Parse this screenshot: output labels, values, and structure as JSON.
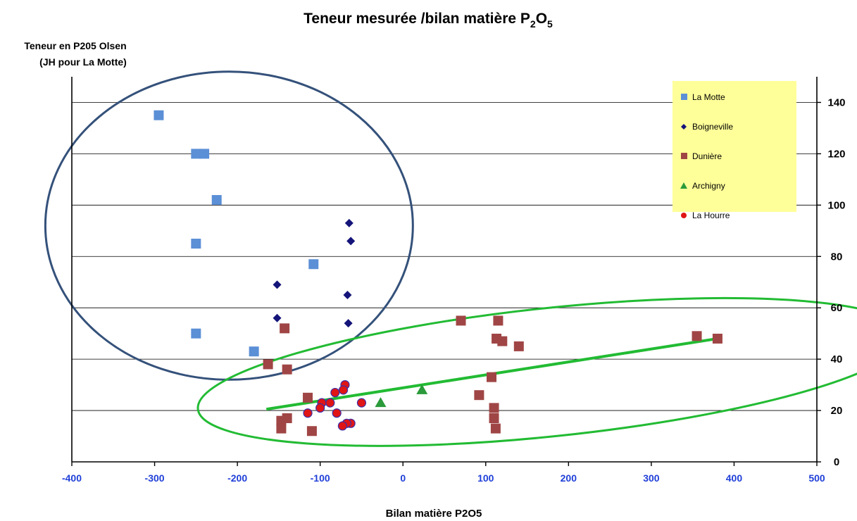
{
  "chart_data": {
    "type": "scatter",
    "title_main": "Teneur mesurée /bilan matière P",
    "title_sub1": "2",
    "title_mid": "O",
    "title_sub2": "5",
    "ylabel_line1": "Teneur en P205 Olsen",
    "ylabel_line2": "(JH pour La Motte)",
    "xlabel": "Bilan  matière P2O5",
    "xlim": [
      -400,
      500
    ],
    "ylim": [
      0,
      150
    ],
    "x_ticks": [
      -400,
      -300,
      -200,
      -100,
      0,
      100,
      200,
      300,
      400,
      500
    ],
    "y_ticks": [
      0,
      20,
      40,
      60,
      80,
      100,
      120,
      140
    ],
    "grid": "horizontal",
    "legend_position": "top-right",
    "series": [
      {
        "name": "La Motte",
        "marker": "square",
        "color": "#5b8fd6",
        "points": [
          [
            -295,
            135
          ],
          [
            -250,
            120
          ],
          [
            -240,
            120
          ],
          [
            -225,
            102
          ],
          [
            -250,
            85
          ],
          [
            -108,
            77
          ],
          [
            -250,
            50
          ],
          [
            -180,
            43
          ]
        ]
      },
      {
        "name": "Boigneville",
        "marker": "diamond",
        "color": "#14147a",
        "points": [
          [
            -65,
            93
          ],
          [
            -63,
            86
          ],
          [
            -152,
            69
          ],
          [
            -67,
            65
          ],
          [
            -152,
            56
          ],
          [
            -66,
            54
          ]
        ]
      },
      {
        "name": "Dunière",
        "marker": "square",
        "color": "#a04545",
        "points": [
          [
            -143,
            52
          ],
          [
            -163,
            38
          ],
          [
            -140,
            36
          ],
          [
            -115,
            25
          ],
          [
            -140,
            17
          ],
          [
            -147,
            16
          ],
          [
            -147,
            13
          ],
          [
            -110,
            12
          ],
          [
            70,
            55
          ],
          [
            115,
            55
          ],
          [
            113,
            48
          ],
          [
            120,
            47
          ],
          [
            140,
            45
          ],
          [
            107,
            33
          ],
          [
            92,
            26
          ],
          [
            110,
            21
          ],
          [
            110,
            17
          ],
          [
            112,
            13
          ],
          [
            355,
            49
          ],
          [
            380,
            48
          ]
        ]
      },
      {
        "name": "Archigny",
        "marker": "triangle",
        "color": "#2a9a3a",
        "points": [
          [
            -27,
            23
          ],
          [
            23,
            28
          ]
        ]
      },
      {
        "name": "La Hourre",
        "marker": "circle",
        "color": "#e01515",
        "points": [
          [
            -70,
            30
          ],
          [
            -72,
            28
          ],
          [
            -82,
            27
          ],
          [
            -98,
            23
          ],
          [
            -88,
            23
          ],
          [
            -50,
            23
          ],
          [
            -100,
            21
          ],
          [
            -115,
            19
          ],
          [
            -80,
            19
          ],
          [
            -63,
            15
          ],
          [
            -68,
            15
          ],
          [
            -73,
            14
          ]
        ]
      }
    ],
    "trendline": {
      "color": "#22bb33",
      "from": [
        -165,
        20.5
      ],
      "to": [
        380,
        48
      ]
    },
    "annotations": [
      {
        "shape": "ellipse",
        "color": "#34517a",
        "center": [
          -210,
          92
        ],
        "radius_x": 222,
        "radius_y": 60
      },
      {
        "shape": "ellipse",
        "color": "#22bb33",
        "center": [
          180,
          35
        ],
        "radius_x": 430,
        "radius_y": 25,
        "tilt": -6
      }
    ]
  }
}
